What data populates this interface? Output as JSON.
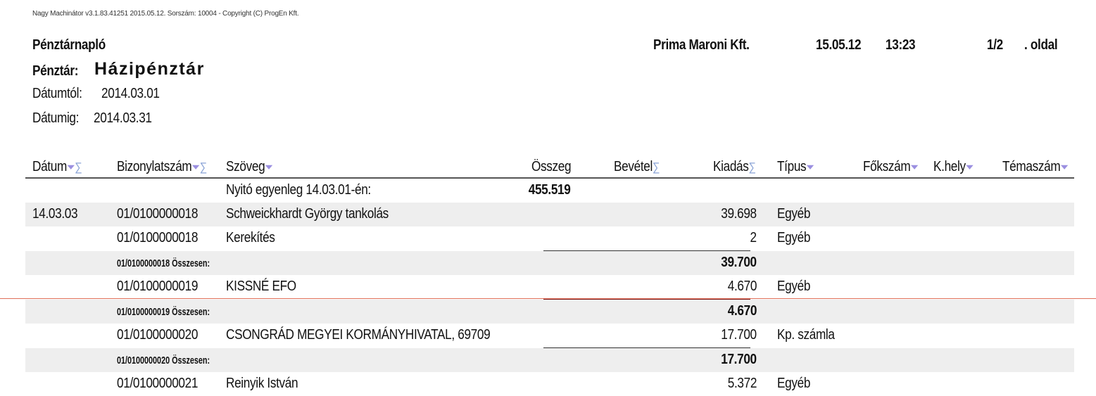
{
  "software_line": "Nagy Machinátor v3.1.83.41251 2015.05.12. Sorszám: 10004 - Copyright (C) ProgEn Kft.",
  "header": {
    "title": "Pénztárnapló",
    "company": "Prima Maroni Kft.",
    "print_date": "15.05.12",
    "print_time": "13:23",
    "page": "1/2",
    "page_suffix": ". oldal",
    "kassza_label": "Pénztár:",
    "kassza_name": "Házipénztár",
    "from_label": "Dátumtól:",
    "from_value": "2014.03.01",
    "to_label": "Dátumig:",
    "to_value": "2014.03.31"
  },
  "columns": {
    "datum": "Dátum",
    "bizonylat": "Bizonylatszám",
    "szoveg": "Szöveg",
    "osszeg": "Összeg",
    "bevetel": "Bevétel",
    "kiadas": "Kiadás",
    "tipus": "Típus",
    "fokszam": "Főkszám",
    "khely": "K.hely",
    "temaszam": "Témaszám"
  },
  "icons": {
    "filter": "funnel-icon",
    "sum": "sigma-icon"
  },
  "opening": {
    "text": "Nyitó egyenleg 14.03.01-én:",
    "amount": "455.519"
  },
  "rows": [
    {
      "datum": "14.03.03",
      "bizonylat": "01/0100000018",
      "szoveg": "Schweickhardt György tankolás",
      "kiadas": "39.698",
      "tipus": "Egyéb"
    },
    {
      "datum": "",
      "bizonylat": "01/0100000018",
      "szoveg": "Kerekítés",
      "kiadas": "2",
      "tipus": "Egyéb"
    },
    {
      "subtotal_label": "01/0100000018 Összesen:",
      "kiadas": "39.700"
    },
    {
      "bizonylat": "01/0100000019",
      "szoveg": "KISSNÉ EFO",
      "kiadas": "4.670",
      "tipus": "Egyéb"
    },
    {
      "subtotal_label": "01/0100000019 Összesen:",
      "kiadas": "4.670"
    },
    {
      "bizonylat": "01/0100000020",
      "szoveg": "CSONGRÁD MEGYEI KORMÁNYHIVATAL, 69709",
      "kiadas": "17.700",
      "tipus": "Kp. számla"
    },
    {
      "subtotal_label": "01/0100000020 Összesen:",
      "kiadas": "17.700"
    },
    {
      "bizonylat": "01/0100000021",
      "szoveg": "Reinyik István",
      "kiadas": "5.372",
      "tipus": "Egyéb"
    }
  ]
}
